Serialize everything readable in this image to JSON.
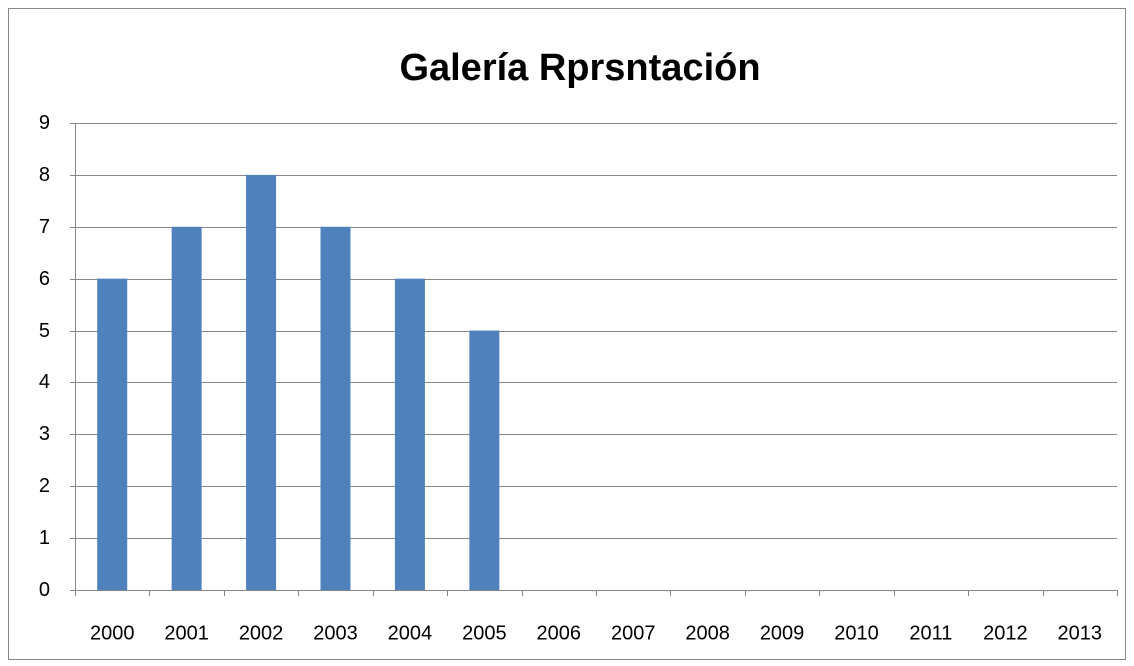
{
  "chart_data": {
    "type": "bar",
    "title": "Galería Rprsntación",
    "categories": [
      "2000",
      "2001",
      "2002",
      "2003",
      "2004",
      "2005",
      "2006",
      "2007",
      "2008",
      "2009",
      "2010",
      "2011",
      "2012",
      "2013"
    ],
    "values": [
      6,
      7,
      8,
      7,
      6,
      5,
      null,
      null,
      null,
      null,
      null,
      null,
      null,
      null
    ],
    "color": "#4f81bd",
    "ylim": [
      0,
      9
    ],
    "yticks": [
      0,
      1,
      2,
      3,
      4,
      5,
      6,
      7,
      8,
      9
    ],
    "grid": true
  }
}
